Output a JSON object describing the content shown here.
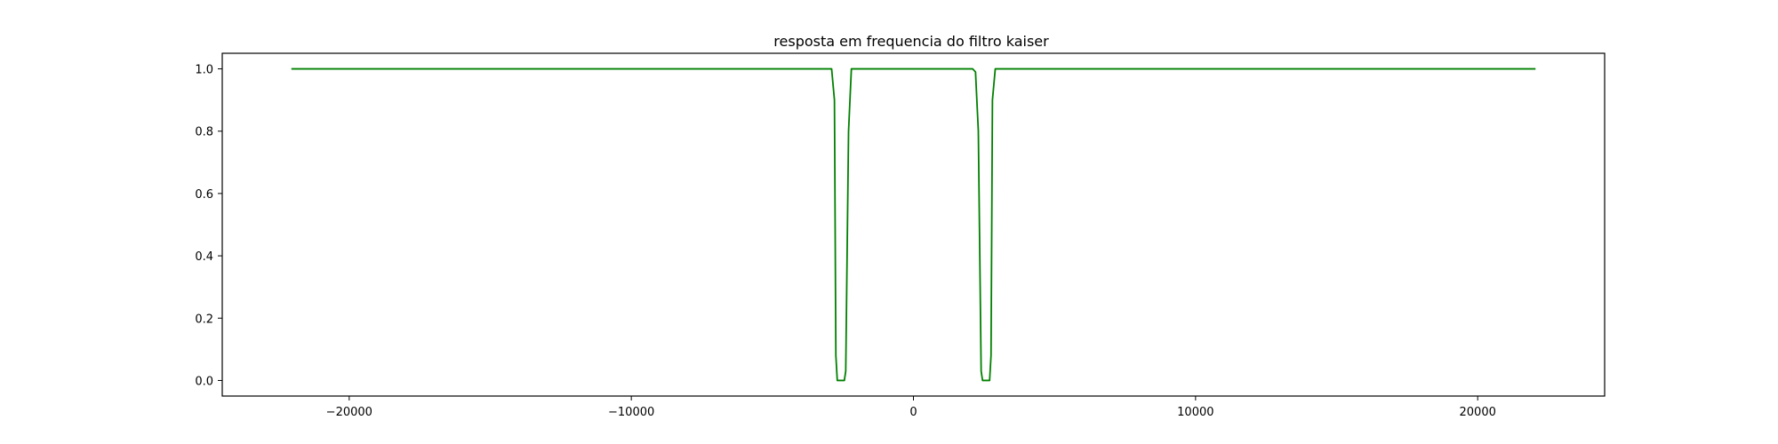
{
  "chart_data": {
    "type": "line",
    "title": "resposta em frequencia do filtro kaiser",
    "xlabel": "",
    "ylabel": "",
    "xlim": [
      -24500,
      24500
    ],
    "ylim": [
      -0.05,
      1.05
    ],
    "x_ticks": [
      -20000,
      -10000,
      0,
      10000,
      20000
    ],
    "x_tick_labels": [
      "−20000",
      "−10000",
      "0",
      "10000",
      "20000"
    ],
    "y_ticks": [
      0.0,
      0.2,
      0.4,
      0.6,
      0.8,
      1.0
    ],
    "y_tick_labels": [
      "0.0",
      "0.2",
      "0.4",
      "0.6",
      "0.8",
      "1.0"
    ],
    "grid": false,
    "legend": false,
    "series": [
      {
        "color": "#008000",
        "x": [
          -22050,
          -2900,
          -2800,
          -2750,
          -2700,
          -2600,
          -2450,
          -2400,
          -2300,
          -2200,
          -2100,
          2100,
          2200,
          2300,
          2400,
          2450,
          2600,
          2700,
          2750,
          2800,
          2900,
          22050
        ],
        "y": [
          1.0,
          1.0,
          0.9,
          0.08,
          0.0,
          0.0,
          0.0,
          0.03,
          0.8,
          1.0,
          1.0,
          1.0,
          0.99,
          0.8,
          0.03,
          0.0,
          0.0,
          0.0,
          0.08,
          0.9,
          1.0,
          1.0
        ]
      }
    ]
  }
}
